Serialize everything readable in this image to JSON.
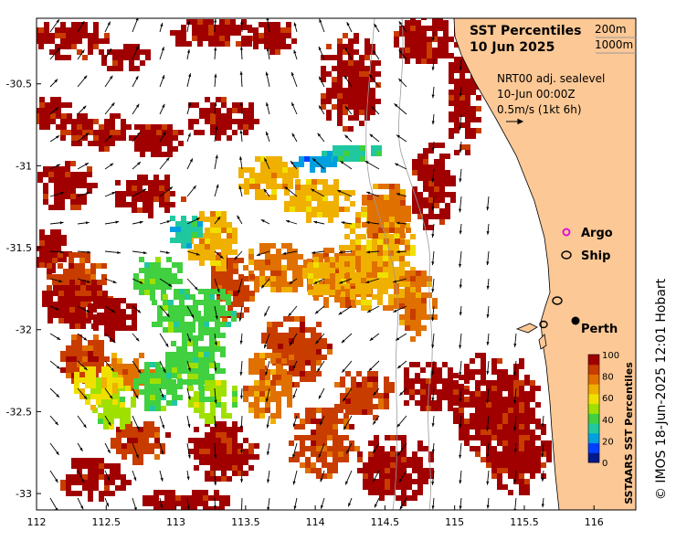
{
  "title": {
    "line1": "SST Percentiles",
    "line2": "10 Jun 2025"
  },
  "isobaths": [
    "200m",
    "1000m"
  ],
  "vector_info": {
    "line1": "NRT00 adj. sealevel",
    "line2": "10-Jun 00:00Z",
    "line3": "0.5m/s (1kt 6h)"
  },
  "legend_markers": [
    {
      "label": "Argo",
      "color": "#e000e0",
      "shape": "circle"
    },
    {
      "label": "Ship",
      "color": "#000000",
      "shape": "ellipse"
    }
  ],
  "city": {
    "label": "Perth",
    "lon": 115.86,
    "lat": -31.95
  },
  "colorbar": {
    "title": "SSTAARS SST Percentiles",
    "ticks": [
      "0",
      "20",
      "40",
      "60",
      "80",
      "100"
    ],
    "colors": [
      "#001a8c",
      "#0040ff",
      "#00a0e0",
      "#20c8a0",
      "#40d040",
      "#a0e000",
      "#f0e000",
      "#f0b000",
      "#e07000",
      "#c83c00",
      "#a00000"
    ]
  },
  "credit": "© IMOS 18-Jun-2025 12:01 Hobart",
  "x_axis": {
    "ticks": [
      "112",
      "112.5",
      "113",
      "113.5",
      "114",
      "114.5",
      "115",
      "115.5",
      "116"
    ],
    "range": [
      112,
      116.3
    ]
  },
  "y_axis": {
    "ticks": [
      "-30.5",
      "-31",
      "-31.5",
      "-32",
      "-32.5",
      "-33"
    ],
    "range": [
      -33.1,
      -30.1
    ]
  },
  "colors": {
    "land": "#fcc895",
    "ocean": "#ffffff",
    "coast": "#000000"
  }
}
